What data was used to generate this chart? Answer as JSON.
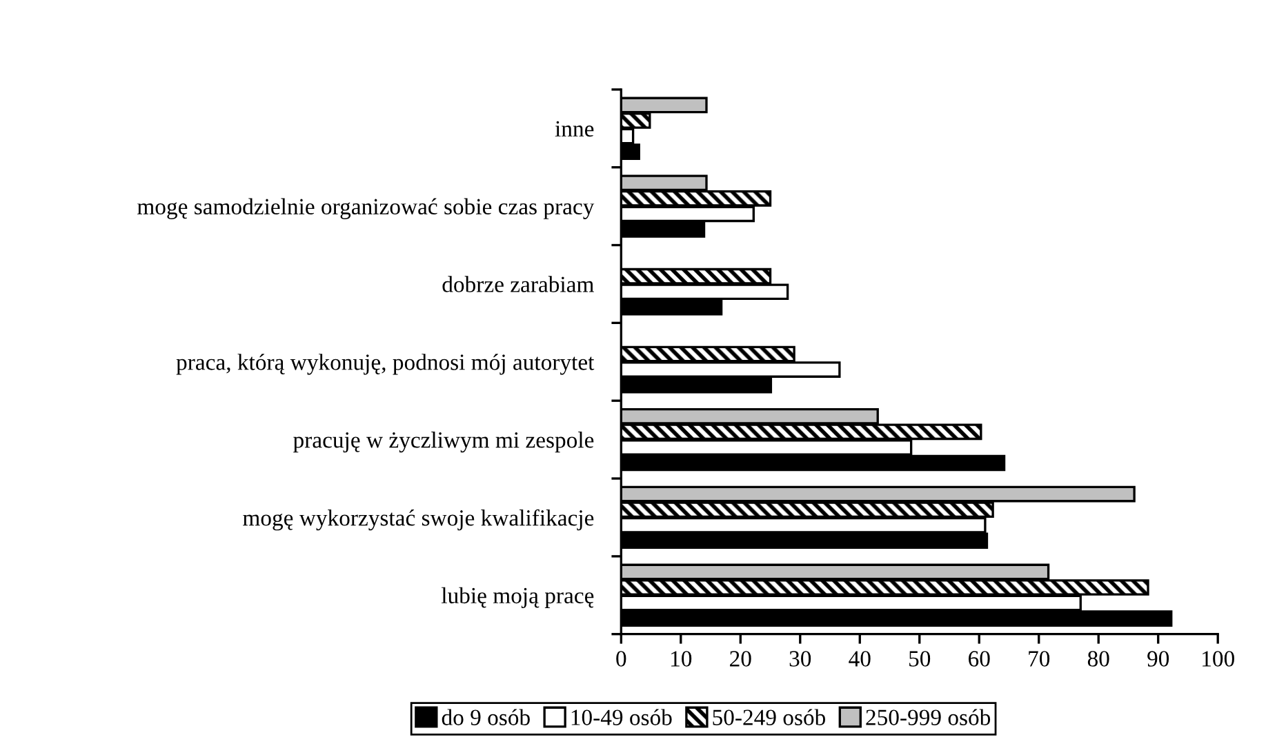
{
  "chart_data": {
    "type": "bar",
    "orientation": "horizontal",
    "categories": [
      "inne",
      "mogę samodzielnie organizować sobie czas pracy",
      "dobrze zarabiam",
      "praca, którą wykonuję, podnosi mój autorytet",
      "pracuję w życzliwym mi zespole",
      "mogę wykorzystać swoje kwalifikacje",
      "lubię moją pracę"
    ],
    "series": [
      {
        "name": "250-999 osób",
        "color": "#c0c0c0",
        "values": [
          14.3,
          14.3,
          null,
          null,
          43,
          86,
          71.6
        ]
      },
      {
        "name": "50-249 osób",
        "color": "#000000",
        "values": [
          4.8,
          25,
          25,
          29,
          60.3,
          62.3,
          88.3
        ]
      },
      {
        "name": "10-49 osób",
        "color": "#ffffff",
        "values": [
          2,
          22.2,
          27.9,
          36.6,
          48.6,
          61,
          77
        ]
      },
      {
        "name": "do 9 osób",
        "color": "#000000",
        "values": [
          3,
          13.9,
          16.8,
          25.1,
          64.2,
          61.3,
          92.2
        ]
      }
    ],
    "xlim": [
      0,
      100
    ],
    "xticks": [
      0,
      10,
      20,
      30,
      40,
      50,
      60,
      70,
      80,
      90,
      100
    ],
    "grid": false,
    "legend": "bottom"
  }
}
